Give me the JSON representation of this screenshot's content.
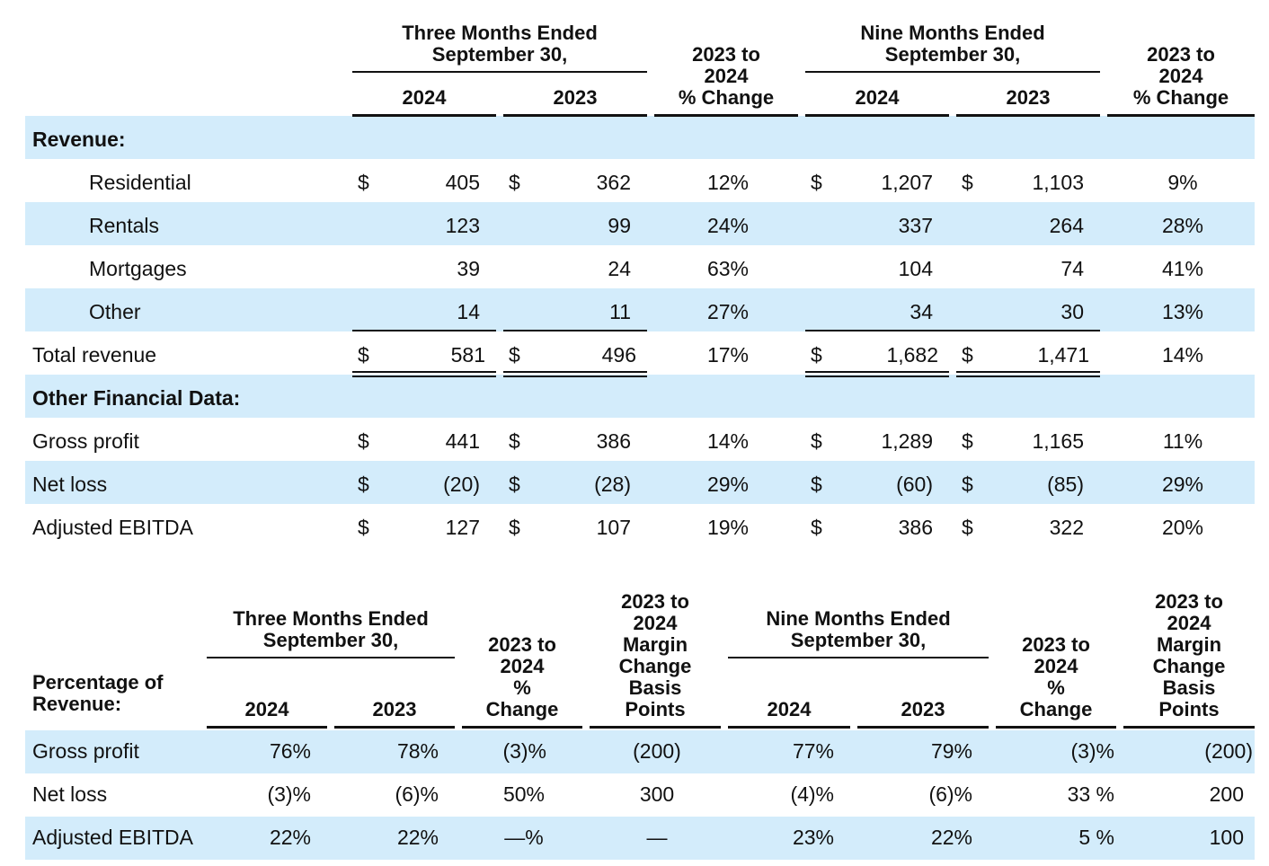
{
  "table1": {
    "header": {
      "three_months": "Three Months Ended\nSeptember 30,",
      "nine_months": "Nine Months Ended\nSeptember 30,",
      "year_2024": "2024",
      "year_2023": "2023",
      "pct_change": "2023 to\n2024\n% Change"
    },
    "sections": {
      "revenue": "Revenue:",
      "other_financial": "Other Financial Data:"
    },
    "currency": "$",
    "rows": [
      {
        "label": "Residential",
        "q24": "405",
        "q23": "362",
        "qchg": "12%",
        "n24": "1,207",
        "n23": "1,103",
        "nchg": "9%"
      },
      {
        "label": "Rentals",
        "q24": "123",
        "q23": "99",
        "qchg": "24%",
        "n24": "337",
        "n23": "264",
        "nchg": "28%"
      },
      {
        "label": "Mortgages",
        "q24": "39",
        "q23": "24",
        "qchg": "63%",
        "n24": "104",
        "n23": "74",
        "nchg": "41%"
      },
      {
        "label": "Other",
        "q24": "14",
        "q23": "11",
        "qchg": "27%",
        "n24": "34",
        "n23": "30",
        "nchg": "13%"
      },
      {
        "label": "Total revenue",
        "q24": "581",
        "q23": "496",
        "qchg": "17%",
        "n24": "1,682",
        "n23": "1,471",
        "nchg": "14%"
      },
      {
        "label": "Gross profit",
        "q24": "441",
        "q23": "386",
        "qchg": "14%",
        "n24": "1,289",
        "n23": "1,165",
        "nchg": "11%"
      },
      {
        "label": "Net loss",
        "q24": "(20)",
        "q23": "(28)",
        "qchg": "29%",
        "n24": "(60)",
        "n23": "(85)",
        "nchg": "29%"
      },
      {
        "label": "Adjusted EBITDA",
        "q24": "127",
        "q23": "107",
        "qchg": "19%",
        "n24": "386",
        "n23": "322",
        "nchg": "20%"
      }
    ]
  },
  "table2": {
    "header": {
      "section": "Percentage of\nRevenue:",
      "three_months": "Three Months Ended\nSeptember 30,",
      "nine_months": "Nine Months Ended\nSeptember 30,",
      "year_2024": "2024",
      "year_2023": "2023",
      "pct_change": "2023 to\n2024\n%\nChange",
      "margin_bp": "2023 to\n2024\nMargin\nChange\nBasis\nPoints"
    },
    "rows": [
      {
        "label": "Gross profit",
        "q24": "76%",
        "q23": "78%",
        "qchg": "(3)%",
        "qbp": "(200)",
        "n24": "77%",
        "n23": "79%",
        "nchg": "(3)%",
        "nbp": "(200)"
      },
      {
        "label": "Net loss",
        "q24": "(3)%",
        "q23": "(6)%",
        "qchg": "50%",
        "qbp": "300",
        "n24": "(4)%",
        "n23": "(6)%",
        "nchg": "33 %",
        "nbp": "200"
      },
      {
        "label": "Adjusted EBITDA",
        "q24": "22%",
        "q23": "22%",
        "qchg": "—%",
        "qbp": "—",
        "n24": "23%",
        "n23": "22%",
        "nchg": "5 %",
        "nbp": "100"
      }
    ]
  },
  "colors": {
    "band": "#d3ecfb",
    "text": "#111111"
  }
}
